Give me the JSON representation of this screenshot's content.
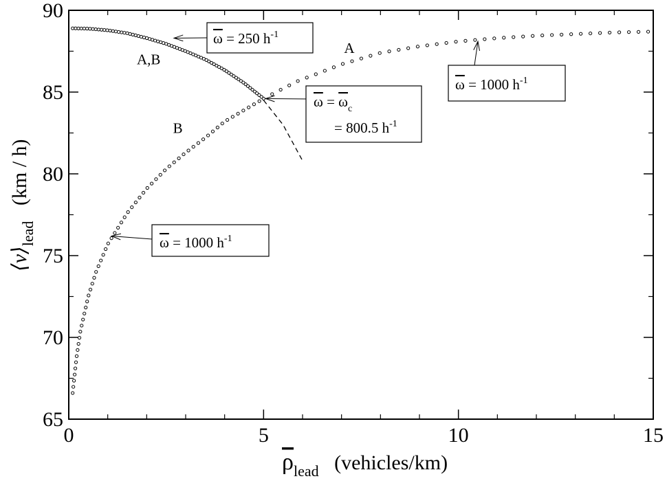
{
  "chart_data": {
    "type": "scatter",
    "title": "",
    "xlabel": {
      "symbol": "ρ",
      "subscript": "lead",
      "units": "(vehicles/km)"
    },
    "ylabel": {
      "symbol": "⟨v⟩",
      "subscript": "lead",
      "units": "(km / h)"
    },
    "xlim": [
      0,
      15
    ],
    "ylim": [
      65,
      90
    ],
    "x_ticks": [
      0,
      5,
      10,
      15
    ],
    "y_ticks": [
      65,
      70,
      75,
      80,
      85,
      90
    ],
    "grid": false,
    "series": [
      {
        "name": "A",
        "style": "circles",
        "points": [
          [
            5.0,
            84.6
          ],
          [
            5.4,
            85.1
          ],
          [
            5.9,
            85.7
          ],
          [
            6.35,
            86.1
          ],
          [
            7.0,
            86.7
          ],
          [
            8.0,
            87.4
          ],
          [
            9.0,
            87.8
          ],
          [
            10.0,
            88.1
          ],
          [
            11.0,
            88.3
          ],
          [
            12.0,
            88.45
          ],
          [
            13.0,
            88.55
          ],
          [
            14.0,
            88.65
          ],
          [
            15.0,
            88.7
          ]
        ]
      },
      {
        "name": "B",
        "style": "circles",
        "points": [
          [
            0.1,
            66.6
          ],
          [
            0.2,
            68.8
          ],
          [
            0.3,
            70.4
          ],
          [
            0.5,
            72.5
          ],
          [
            0.7,
            74.0
          ],
          [
            1.0,
            75.7
          ],
          [
            1.5,
            77.6
          ],
          [
            2.0,
            79.1
          ],
          [
            2.5,
            80.3
          ],
          [
            3.0,
            81.3
          ],
          [
            3.5,
            82.2
          ],
          [
            4.0,
            83.2
          ],
          [
            4.5,
            83.9
          ],
          [
            5.0,
            84.6
          ]
        ]
      },
      {
        "name": "A,B",
        "style": "circles",
        "points": [
          [
            0.1,
            88.9
          ],
          [
            0.5,
            88.88
          ],
          [
            1.0,
            88.78
          ],
          [
            1.5,
            88.6
          ],
          [
            2.0,
            88.3
          ],
          [
            2.5,
            87.95
          ],
          [
            3.0,
            87.5
          ],
          [
            3.5,
            87.0
          ],
          [
            4.0,
            86.35
          ],
          [
            4.5,
            85.55
          ],
          [
            5.0,
            84.6
          ]
        ]
      },
      {
        "name": "",
        "style": "dashed",
        "points": [
          [
            5.0,
            84.5
          ],
          [
            5.5,
            83.0
          ],
          [
            6.0,
            80.8
          ]
        ]
      }
    ],
    "curve_labels": [
      {
        "text": "A,B",
        "x": 2.05,
        "y": 86.7
      },
      {
        "text": "A",
        "x": 7.2,
        "y": 87.4
      },
      {
        "text": "B",
        "x": 2.8,
        "y": 82.5
      }
    ],
    "annotations": [
      {
        "omega_label": "ω",
        "text": " = 250 h",
        "sup": "-1",
        "arrow_to": {
          "x": 2.7,
          "y": 88.3
        }
      },
      {
        "omega_label": "ω",
        "text": " = 1000 h",
        "sup": "-1",
        "arrow_to": {
          "x": 10.5,
          "y": 88.1
        }
      },
      {
        "omega_label": "ω",
        "text": " = 1000 h",
        "sup": "-1",
        "arrow_to": {
          "x": 1.1,
          "y": 76.2
        }
      },
      {
        "omega_label": "ω",
        "text": " = ",
        "omega2_label": "ω",
        "sub": "c",
        "line2": "= 800.5 h",
        "sup": "-1",
        "arrow_to": {
          "x": 5.05,
          "y": 84.6
        }
      }
    ]
  }
}
